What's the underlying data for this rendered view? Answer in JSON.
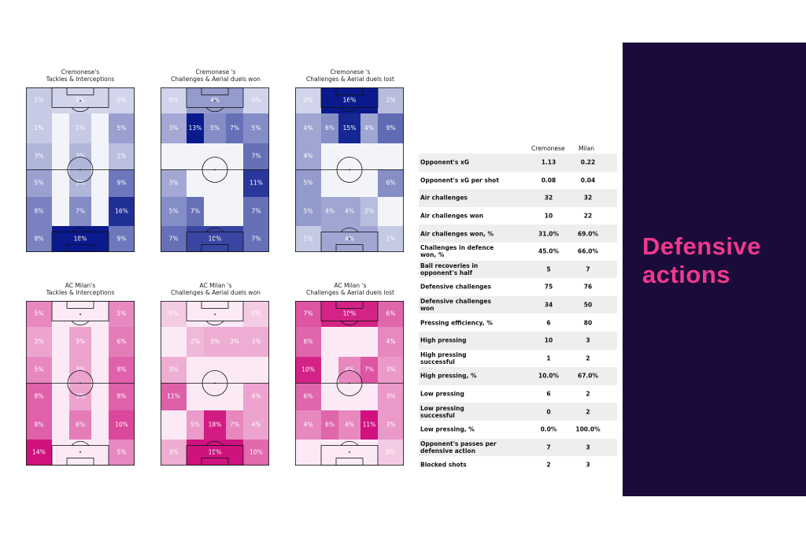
{
  "chart_data": [
    {
      "type": "heatmap",
      "title": [
        "Cremonese's",
        "Tackles & Interceptions"
      ],
      "palette": "blue",
      "cells": [
        {
          "row": "goal-top",
          "col": "left",
          "label": "1%",
          "value": 1
        },
        {
          "row": "goal-top",
          "col": "center",
          "label": "0%",
          "value": 0
        },
        {
          "row": "goal-top",
          "col": "right",
          "label": "0%",
          "value": 0
        },
        {
          "row": "1",
          "col": "left",
          "label": "1%",
          "value": 1
        },
        {
          "row": "1",
          "col": "center",
          "label": "1%",
          "value": 1
        },
        {
          "row": "1",
          "col": "right",
          "label": "5%",
          "value": 5
        },
        {
          "row": "2",
          "col": "left",
          "label": "3%",
          "value": 3
        },
        {
          "row": "2",
          "col": "center",
          "label": "3%",
          "value": 3
        },
        {
          "row": "2",
          "col": "right",
          "label": "2%",
          "value": 2
        },
        {
          "row": "3",
          "col": "left",
          "label": "5%",
          "value": 5
        },
        {
          "row": "3",
          "col": "center",
          "label": "3%",
          "value": 3
        },
        {
          "row": "3",
          "col": "right",
          "label": "9%",
          "value": 9
        },
        {
          "row": "4",
          "col": "left",
          "label": "8%",
          "value": 8
        },
        {
          "row": "4",
          "col": "center",
          "label": "7%",
          "value": 7
        },
        {
          "row": "4",
          "col": "right",
          "label": "16%",
          "value": 16
        },
        {
          "row": "goal-bottom",
          "col": "left",
          "label": "8%",
          "value": 8
        },
        {
          "row": "goal-bottom",
          "col": "center",
          "label": "18%",
          "value": 18
        },
        {
          "row": "goal-bottom",
          "col": "right",
          "label": "9%",
          "value": 9
        }
      ]
    },
    {
      "type": "heatmap",
      "title": [
        "Cremonese 's",
        "Challenges & Aerial duels won"
      ],
      "palette": "blue",
      "cells": [
        {
          "row": "goal-top",
          "col": "left",
          "label": "0%",
          "value": 0
        },
        {
          "row": "goal-top",
          "col": "center",
          "label": "4%",
          "value": 4
        },
        {
          "row": "goal-top",
          "col": "right",
          "label": "0%",
          "value": 0
        },
        {
          "row": "1",
          "col": "left",
          "label": "3%",
          "value": 3
        },
        {
          "row": "1",
          "col": "center-left",
          "label": "13%",
          "value": 13
        },
        {
          "row": "1",
          "col": "center",
          "label": "5%",
          "value": 5
        },
        {
          "row": "1",
          "col": "center-right",
          "label": "7%",
          "value": 7
        },
        {
          "row": "1",
          "col": "right-a",
          "label": "5%",
          "value": 5
        },
        {
          "row": "1",
          "col": "right-b",
          "label": "7%",
          "value": 7
        },
        {
          "row": "3",
          "col": "left",
          "label": "3%",
          "value": 3
        },
        {
          "row": "3",
          "col": "right",
          "label": "11%",
          "value": 11
        },
        {
          "row": "4",
          "col": "left",
          "label": "5%",
          "value": 5
        },
        {
          "row": "4",
          "col": "center-left",
          "label": "7%",
          "value": 7
        },
        {
          "row": "4",
          "col": "right",
          "label": "7%",
          "value": 7
        },
        {
          "row": "goal-bottom",
          "col": "left",
          "label": "7%",
          "value": 7
        },
        {
          "row": "goal-bottom",
          "col": "center",
          "label": "10%",
          "value": 10
        },
        {
          "row": "goal-bottom",
          "col": "right",
          "label": "7%",
          "value": 7
        }
      ]
    },
    {
      "type": "heatmap",
      "title": [
        "Cremonese 's",
        "Challenges & Aerial duels lost"
      ],
      "palette": "blue",
      "cells": [
        {
          "row": "goal-top",
          "col": "left",
          "label": "0%",
          "value": 0
        },
        {
          "row": "goal-top",
          "col": "center",
          "label": "16%",
          "value": 16
        },
        {
          "row": "goal-top",
          "col": "right",
          "label": "2%",
          "value": 2
        },
        {
          "row": "1",
          "col": "left",
          "label": "4%",
          "value": 4
        },
        {
          "row": "1",
          "col": "center-left",
          "label": "6%",
          "value": 6
        },
        {
          "row": "1",
          "col": "center",
          "label": "15%",
          "value": 15
        },
        {
          "row": "1",
          "col": "center-right",
          "label": "4%",
          "value": 4
        },
        {
          "row": "1",
          "col": "right",
          "label": "9%",
          "value": 9
        },
        {
          "row": "1b",
          "col": "left",
          "label": "4%",
          "value": 4
        },
        {
          "row": "3",
          "col": "left",
          "label": "5%",
          "value": 5
        },
        {
          "row": "3",
          "col": "right",
          "label": "6%",
          "value": 6
        },
        {
          "row": "4",
          "col": "left",
          "label": "5%",
          "value": 5
        },
        {
          "row": "4",
          "col": "center-left",
          "label": "4%",
          "value": 4
        },
        {
          "row": "4",
          "col": "center",
          "label": "4%",
          "value": 4
        },
        {
          "row": "4",
          "col": "center-right",
          "label": "2%",
          "value": 2
        },
        {
          "row": "goal-bottom",
          "col": "left",
          "label": "1%",
          "value": 1
        },
        {
          "row": "goal-bottom",
          "col": "center",
          "label": "4%",
          "value": 4
        },
        {
          "row": "goal-bottom",
          "col": "right",
          "label": "1%",
          "value": 1
        }
      ]
    },
    {
      "type": "heatmap",
      "title": [
        "AC Milan's",
        "Tackles & Interceptions"
      ],
      "palette": "pink",
      "cells": [
        {
          "row": "goal-top",
          "col": "left",
          "label": "5%",
          "value": 5
        },
        {
          "row": "goal-top",
          "col": "right",
          "label": "5%",
          "value": 5
        },
        {
          "row": "1",
          "col": "left",
          "label": "3%",
          "value": 3
        },
        {
          "row": "1",
          "col": "center",
          "label": "3%",
          "value": 3
        },
        {
          "row": "1",
          "col": "right",
          "label": "6%",
          "value": 6
        },
        {
          "row": "2",
          "col": "left",
          "label": "5%",
          "value": 5
        },
        {
          "row": "2",
          "col": "center",
          "label": "3%",
          "value": 3
        },
        {
          "row": "2",
          "col": "right",
          "label": "8%",
          "value": 8
        },
        {
          "row": "3",
          "col": "left",
          "label": "8%",
          "value": 8
        },
        {
          "row": "3",
          "col": "center",
          "label": "3%",
          "value": 3
        },
        {
          "row": "3",
          "col": "right",
          "label": "8%",
          "value": 8
        },
        {
          "row": "4",
          "col": "left",
          "label": "8%",
          "value": 8
        },
        {
          "row": "4",
          "col": "center",
          "label": "6%",
          "value": 6
        },
        {
          "row": "4",
          "col": "right",
          "label": "10%",
          "value": 10
        },
        {
          "row": "goal-bottom",
          "col": "left",
          "label": "14%",
          "value": 14
        },
        {
          "row": "goal-bottom",
          "col": "right",
          "label": "5%",
          "value": 5
        }
      ]
    },
    {
      "type": "heatmap",
      "title": [
        "AC Milan 's",
        "Challenges & Aerial duels won"
      ],
      "palette": "pink",
      "cells": [
        {
          "row": "goal-top",
          "col": "left",
          "label": "0%",
          "value": 0
        },
        {
          "row": "goal-top",
          "col": "right",
          "label": "0%",
          "value": 0
        },
        {
          "row": "1",
          "col": "center-left",
          "label": "2%",
          "value": 2
        },
        {
          "row": "1",
          "col": "center",
          "label": "3%",
          "value": 3
        },
        {
          "row": "1",
          "col": "center-right",
          "label": "3%",
          "value": 3
        },
        {
          "row": "1",
          "col": "right",
          "label": "3%",
          "value": 3
        },
        {
          "row": "2",
          "col": "left",
          "label": "3%",
          "value": 3
        },
        {
          "row": "3",
          "col": "left",
          "label": "11%",
          "value": 11
        },
        {
          "row": "3",
          "col": "right",
          "label": "4%",
          "value": 4
        },
        {
          "row": "4",
          "col": "center-left",
          "label": "5%",
          "value": 5
        },
        {
          "row": "4",
          "col": "center",
          "label": "18%",
          "value": 18
        },
        {
          "row": "4",
          "col": "center-right",
          "label": "7%",
          "value": 7
        },
        {
          "row": "4b",
          "col": "right",
          "label": "4%",
          "value": 4
        },
        {
          "row": "goal-bottom",
          "col": "left",
          "label": "3%",
          "value": 3
        },
        {
          "row": "goal-bottom",
          "col": "center",
          "label": "19%",
          "value": 19
        },
        {
          "row": "goal-bottom",
          "col": "right",
          "label": "10%",
          "value": 10
        }
      ]
    },
    {
      "type": "heatmap",
      "title": [
        "AC Milan 's",
        "Challenges & Aerial duels lost"
      ],
      "palette": "pink",
      "cells": [
        {
          "row": "goal-top",
          "col": "left",
          "label": "7%",
          "value": 7
        },
        {
          "row": "goal-top",
          "col": "center",
          "label": "10%",
          "value": 10
        },
        {
          "row": "goal-top",
          "col": "right",
          "label": "6%",
          "value": 6
        },
        {
          "row": "1",
          "col": "left",
          "label": "6%",
          "value": 6
        },
        {
          "row": "1",
          "col": "right",
          "label": "4%",
          "value": 4
        },
        {
          "row": "2",
          "col": "left",
          "label": "10%",
          "value": 10
        },
        {
          "row": "2",
          "col": "center",
          "label": "4%",
          "value": 4
        },
        {
          "row": "2",
          "col": "center-right",
          "label": "7%",
          "value": 7
        },
        {
          "row": "2",
          "col": "right",
          "label": "3%",
          "value": 3
        },
        {
          "row": "3",
          "col": "left",
          "label": "6%",
          "value": 6
        },
        {
          "row": "3",
          "col": "right",
          "label": "3%",
          "value": 3
        },
        {
          "row": "4",
          "col": "left",
          "label": "4%",
          "value": 4
        },
        {
          "row": "4",
          "col": "center-left",
          "label": "6%",
          "value": 6
        },
        {
          "row": "4",
          "col": "center",
          "label": "4%",
          "value": 4
        },
        {
          "row": "4",
          "col": "center-right",
          "label": "11%",
          "value": 11
        },
        {
          "row": "4",
          "col": "right",
          "label": "3%",
          "value": 3
        },
        {
          "row": "goal-bottom",
          "col": "right",
          "label": "0%",
          "value": 0
        }
      ]
    },
    {
      "type": "table",
      "columns": [
        "",
        "Cremonese",
        "Milan"
      ],
      "rows": [
        {
          "label": "Opponent's xG",
          "cremonese": "1.13",
          "milan": "0.22"
        },
        {
          "label": "Opponent's xG per shot",
          "cremonese": "0.08",
          "milan": "0.04"
        },
        {
          "label": "Air challenges",
          "cremonese": "32",
          "milan": "32"
        },
        {
          "label": "Air challenges won",
          "cremonese": "10",
          "milan": "22"
        },
        {
          "label": "Air challenges won, %",
          "cremonese": "31.0%",
          "milan": "69.0%"
        },
        {
          "label": "Challenges in defence won, %",
          "cremonese": "45.0%",
          "milan": "66.0%"
        },
        {
          "label": "Ball recoveries in opponent's half",
          "cremonese": "5",
          "milan": "7"
        },
        {
          "label": "Defensive challenges",
          "cremonese": "75",
          "milan": "76"
        },
        {
          "label": "Defensive challenges won",
          "cremonese": "34",
          "milan": "50"
        },
        {
          "label": "Pressing efficiency, %",
          "cremonese": "6",
          "milan": "80"
        },
        {
          "label": "High pressing",
          "cremonese": "10",
          "milan": "3"
        },
        {
          "label": "High pressing successful",
          "cremonese": "1",
          "milan": "2"
        },
        {
          "label": "High pressing, %",
          "cremonese": "10.0%",
          "milan": "67.0%"
        },
        {
          "label": "Low pressing",
          "cremonese": "6",
          "milan": "2"
        },
        {
          "label": "Low pressing successful",
          "cremonese": "0",
          "milan": "2"
        },
        {
          "label": "Low pressing, %",
          "cremonese": "0.0%",
          "milan": "100.0%"
        },
        {
          "label": "Opponent's passes per defensive action",
          "cremonese": "7",
          "milan": "3"
        },
        {
          "label": "Blocked shots",
          "cremonese": "2",
          "milan": "3"
        }
      ]
    }
  ],
  "side_panel": {
    "title_line1": "Defensive",
    "title_line2": "actions",
    "background": "#1b0b3a",
    "accent": "#f0398e"
  },
  "colors": {
    "blue_max": "#0a1a8c",
    "pink_max": "#d0127e"
  }
}
